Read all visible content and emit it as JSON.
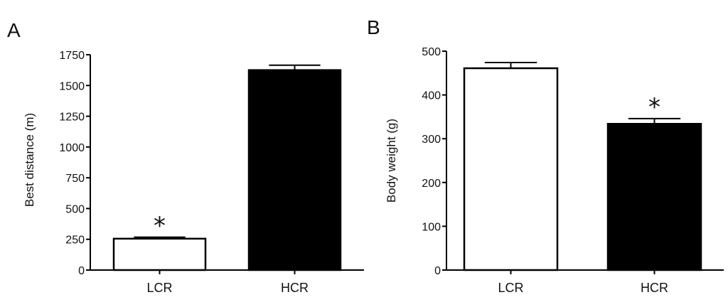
{
  "chart_data": [
    {
      "panel": "A",
      "type": "bar",
      "categories": [
        "LCR",
        "HCR"
      ],
      "values": [
        255,
        1625
      ],
      "errors": [
        12,
        40
      ],
      "significance": [
        "*",
        ""
      ],
      "bar_fills": [
        "#ffffff",
        "#000000"
      ],
      "ylabel": "Best distance (m)",
      "ylim": [
        0,
        1750
      ],
      "yticks": [
        0,
        250,
        500,
        750,
        1000,
        1250,
        1500,
        1750
      ],
      "grid": false
    },
    {
      "panel": "B",
      "type": "bar",
      "categories": [
        "LCR",
        "HCR"
      ],
      "values": [
        461,
        334
      ],
      "errors": [
        13,
        12
      ],
      "significance": [
        "",
        "*"
      ],
      "bar_fills": [
        "#ffffff",
        "#000000"
      ],
      "ylabel": "Body weight (g)",
      "ylim": [
        0,
        500
      ],
      "yticks": [
        0,
        100,
        200,
        300,
        400,
        500
      ],
      "grid": false
    }
  ]
}
